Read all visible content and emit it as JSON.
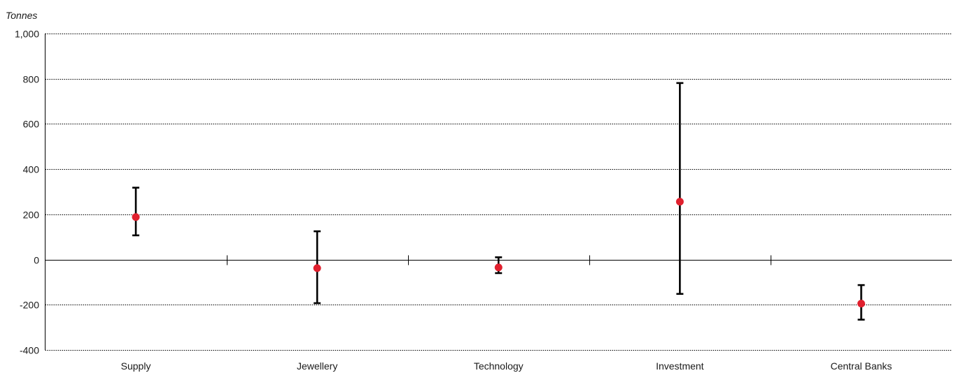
{
  "chart_data": {
    "type": "scatter",
    "ylabel": "Tonnes",
    "ylim": [
      -400,
      1000
    ],
    "yticks": [
      -400,
      -200,
      0,
      200,
      400,
      600,
      800,
      1000
    ],
    "ytick_labels": [
      "-400",
      "-200",
      "0",
      "200",
      "400",
      "600",
      "800",
      "1,000"
    ],
    "grid": true,
    "categories": [
      "Supply",
      "Jewellery",
      "Technology",
      "Investment",
      "Central Banks"
    ],
    "series": [
      {
        "values": [
          188,
          -38,
          -35,
          256,
          -195
        ],
        "error_low": [
          107,
          -193,
          -60,
          -152,
          -266
        ],
        "error_high": [
          318,
          125,
          10,
          781,
          -113
        ],
        "color": "#e0202e"
      }
    ]
  }
}
